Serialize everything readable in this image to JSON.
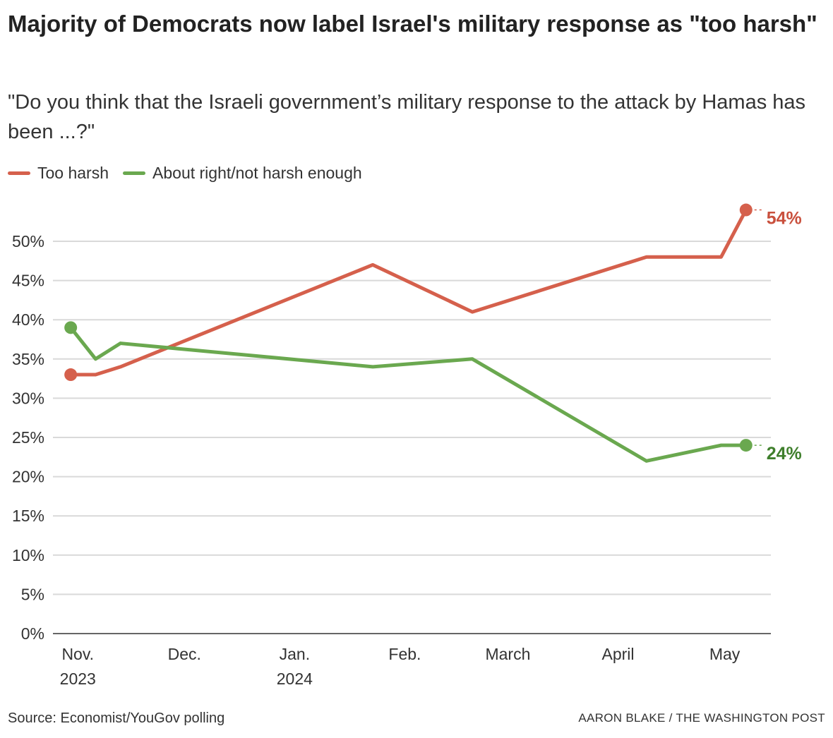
{
  "chart_data": {
    "type": "line",
    "title": "Majority of Democrats now label Israel's military response as \"too harsh\"",
    "subtitle": "\"Do you think that the Israeli government’s military response to the attack by Hamas has been ...?\"",
    "xlabel": "",
    "ylabel": "",
    "ylim": [
      0,
      55
    ],
    "yticks": [
      0,
      5,
      10,
      15,
      20,
      25,
      30,
      35,
      40,
      45,
      50
    ],
    "ytick_labels": [
      "0%",
      "5%",
      "10%",
      "15%",
      "20%",
      "25%",
      "30%",
      "35%",
      "40%",
      "45%",
      "50%"
    ],
    "xlim": [
      "2023-10-25",
      "2024-05-14"
    ],
    "xticks": [
      {
        "date": "2023-11-01",
        "label": "Nov.",
        "sublabel": "2023"
      },
      {
        "date": "2023-12-01",
        "label": "Dec.",
        "sublabel": ""
      },
      {
        "date": "2024-01-01",
        "label": "Jan.",
        "sublabel": "2024"
      },
      {
        "date": "2024-02-01",
        "label": "Feb.",
        "sublabel": ""
      },
      {
        "date": "2024-03-01",
        "label": "March",
        "sublabel": ""
      },
      {
        "date": "2024-04-01",
        "label": "April",
        "sublabel": ""
      },
      {
        "date": "2024-05-01",
        "label": "May",
        "sublabel": ""
      }
    ],
    "grid": true,
    "legend_placement": "top-left",
    "series": [
      {
        "name": "Too harsh",
        "color": "#d5604c",
        "label_color": "#c9503d",
        "end_label": "54%",
        "x": [
          "2023-10-30",
          "2023-11-06",
          "2023-11-13",
          "2024-01-23",
          "2024-02-20",
          "2024-04-09",
          "2024-04-30",
          "2024-05-07"
        ],
        "y": [
          33,
          33,
          34,
          47,
          41,
          48,
          48,
          54
        ]
      },
      {
        "name": "About right/not harsh enough",
        "color": "#6aa84f",
        "label_color": "#3f7f2c",
        "end_label": "24%",
        "x": [
          "2023-10-30",
          "2023-11-06",
          "2023-11-13",
          "2024-01-23",
          "2024-02-20",
          "2024-04-09",
          "2024-04-30",
          "2024-05-07"
        ],
        "y": [
          39,
          35,
          37,
          34,
          35,
          22,
          24,
          24
        ]
      }
    ]
  },
  "source": "Source: Economist/YouGov polling",
  "credit": "AARON BLAKE / THE WASHINGTON POST"
}
